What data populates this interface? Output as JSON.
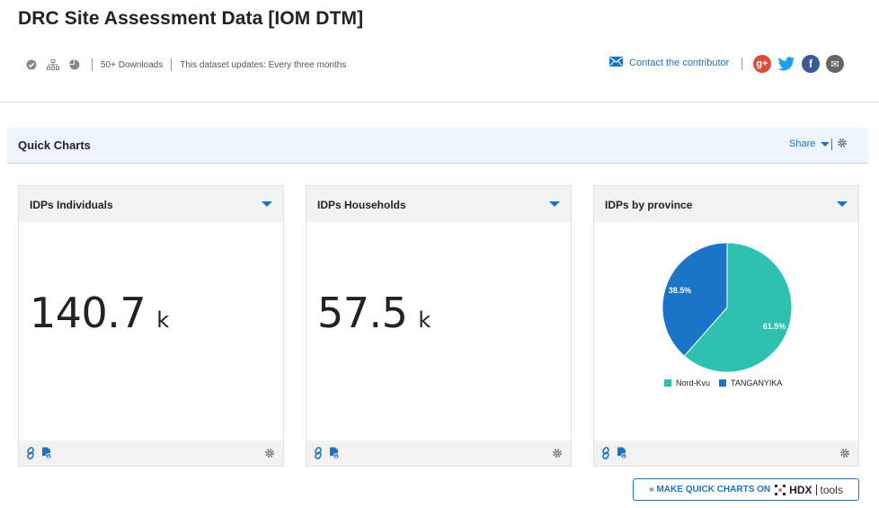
{
  "page": {
    "title": "DRC Site Assessment Data [IOM DTM]"
  },
  "meta": {
    "downloads": "50+ Downloads",
    "update_frequency": "This dataset updates: Every three months",
    "icons": [
      "verified-icon",
      "org-chart-icon",
      "pie-chart-icon"
    ]
  },
  "contact": {
    "label": "Contact the contributor",
    "icon": "envelope-icon"
  },
  "social": {
    "google": {
      "label": "g+",
      "color": "#dd4b39"
    },
    "twitter": {
      "label": "t",
      "color": "#1da1f2"
    },
    "facebook": {
      "label": "f",
      "color": "#3b5998"
    },
    "email": {
      "label": "✉",
      "color": "#666666"
    }
  },
  "quick_charts": {
    "title": "Quick Charts",
    "share_label": "Share"
  },
  "cards": [
    {
      "title": "IDPs Individuals",
      "value": "140.7",
      "unit": "k"
    },
    {
      "title": "IDPs Households",
      "value": "57.5",
      "unit": "k"
    },
    {
      "title": "IDPs by province"
    }
  ],
  "chart_data": {
    "type": "pie",
    "title": "IDPs by province",
    "categories": [
      "Nord-Kvu",
      "TANGANYIKA"
    ],
    "values": [
      61.5,
      38.5
    ],
    "labels": [
      "61.5%",
      "38.5%"
    ],
    "colors": [
      "#2ec1b0",
      "#1a74c7"
    ],
    "legend_position": "bottom"
  },
  "hdx_button": {
    "prefix": "» MAKE QUICK CHARTS ON",
    "logo": "HDX",
    "tools": "tools"
  }
}
